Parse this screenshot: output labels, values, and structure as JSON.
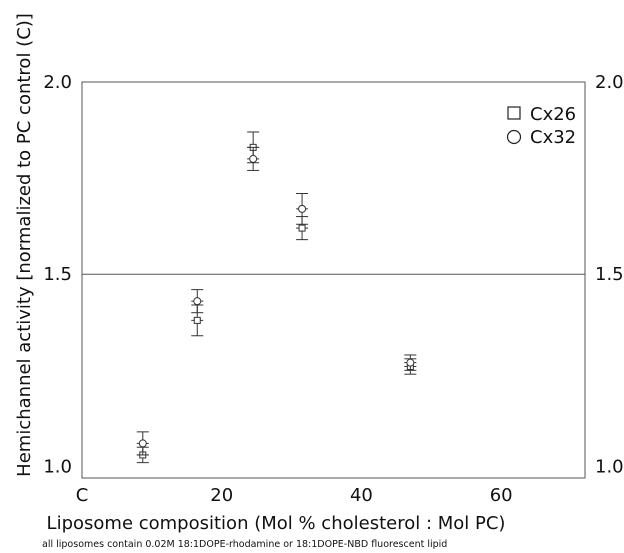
{
  "chart_data": {
    "type": "scatter",
    "xlabel": "Liposome composition (Mol % cholesterol : Mol PC)",
    "ylabel": "Hemichannel activity [normalized to PC control (C)]",
    "footnote": "all liposomes contain 0.02M 18:1DOPE-rhodamine or 18:1DOPE-NBD fluorescent lipid",
    "xlim": [
      0,
      72
    ],
    "ylim": [
      0.97,
      2.0
    ],
    "x_ticks": [
      {
        "value": 0,
        "label": "C"
      },
      {
        "value": 20,
        "label": "20"
      },
      {
        "value": 40,
        "label": "40"
      },
      {
        "value": 60,
        "label": "60"
      }
    ],
    "y_ticks": [
      {
        "value": 1.0,
        "label": "1.0"
      },
      {
        "value": 1.5,
        "label": "1.5"
      },
      {
        "value": 2.0,
        "label": "2.0"
      }
    ],
    "grid": "horizontal line at 1.5",
    "legend_position": "top-right",
    "series": [
      {
        "name": "Cx26",
        "marker": "square",
        "points": [
          {
            "x": 8.7,
            "y": 1.03,
            "err": 0.02
          },
          {
            "x": 16.5,
            "y": 1.38,
            "err": 0.04
          },
          {
            "x": 24.5,
            "y": 1.83,
            "err": 0.04
          },
          {
            "x": 31.5,
            "y": 1.62,
            "err": 0.03
          },
          {
            "x": 47,
            "y": 1.26,
            "err": 0.02
          }
        ]
      },
      {
        "name": "Cx32",
        "marker": "circle",
        "points": [
          {
            "x": 8.7,
            "y": 1.06,
            "err": 0.03
          },
          {
            "x": 16.5,
            "y": 1.43,
            "err": 0.03
          },
          {
            "x": 24.5,
            "y": 1.8,
            "err": 0.03
          },
          {
            "x": 31.5,
            "y": 1.67,
            "err": 0.04
          },
          {
            "x": 47,
            "y": 1.27,
            "err": 0.02
          }
        ]
      }
    ]
  }
}
